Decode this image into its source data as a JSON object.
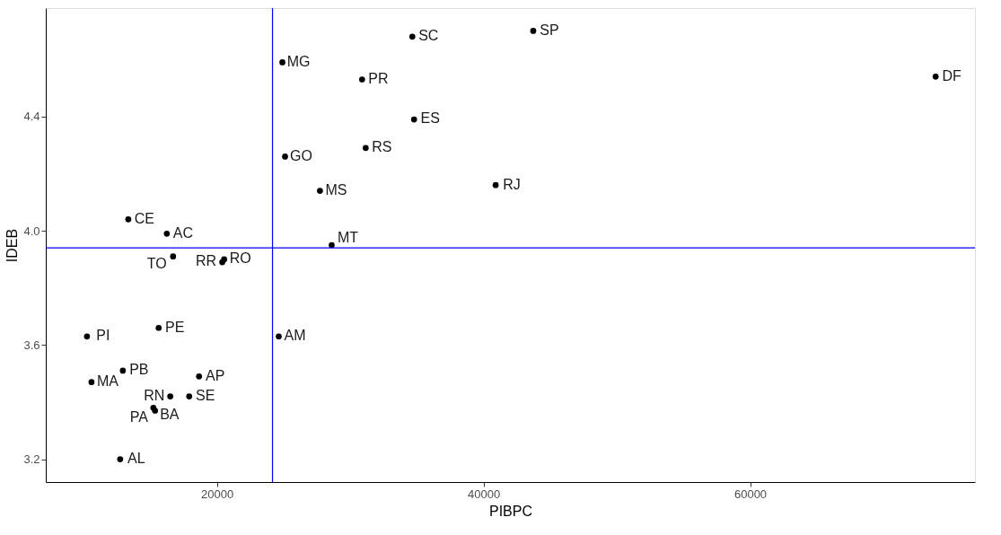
{
  "chart_data": {
    "type": "scatter",
    "xlabel": "PIBPC",
    "ylabel": "IDEB",
    "xlim": [
      7160,
      76870
    ],
    "ylim": [
      3.12,
      4.78
    ],
    "xticks": [
      20000,
      40000,
      60000
    ],
    "yticks": [
      {
        "value": 3.2,
        "label": "3.2"
      },
      {
        "value": 3.6,
        "label": "3.6"
      },
      {
        "value": 4.0,
        "label": "4.0"
      },
      {
        "value": 4.4,
        "label": "4.4"
      }
    ],
    "grid": false,
    "marker": "circle",
    "series": [
      {
        "color": "#000000",
        "x": [
          34660,
          43730,
          73920,
          24910,
          30890,
          34790,
          25110,
          31160,
          40910,
          27730,
          13350,
          16240,
          20540,
          20400,
          16710,
          28610,
          15630,
          24640,
          10250,
          12940,
          18660,
          10590,
          16500,
          17920,
          15230,
          15360,
          12740
        ],
        "values": [
          4.68,
          4.7,
          4.54,
          4.59,
          4.53,
          4.39,
          4.26,
          4.29,
          4.16,
          4.14,
          4.04,
          3.99,
          3.9,
          3.89,
          3.91,
          3.95,
          3.66,
          3.63,
          3.63,
          3.51,
          3.49,
          3.47,
          3.42,
          3.42,
          3.38,
          3.37,
          3.2
        ]
      }
    ],
    "ref_lines": [
      {
        "axis": "x",
        "value": 24170,
        "color": "#0000ff"
      },
      {
        "axis": "y",
        "value": 3.94,
        "color": "#0000ff"
      }
    ],
    "annotations": [
      {
        "text": "SC",
        "x": 34660,
        "y": 4.68
      },
      {
        "text": "SP",
        "x": 43730,
        "y": 4.7
      },
      {
        "text": "DF",
        "x": 73920,
        "y": 4.54
      },
      {
        "text": "MG",
        "x": 24910,
        "y": 4.59
      },
      {
        "text": "PR",
        "x": 30890,
        "y": 4.53
      },
      {
        "text": "ES",
        "x": 34790,
        "y": 4.39
      },
      {
        "text": "GO",
        "x": 25110,
        "y": 4.26
      },
      {
        "text": "RS",
        "x": 31160,
        "y": 4.29
      },
      {
        "text": "RJ",
        "x": 40910,
        "y": 4.16
      },
      {
        "text": "MS",
        "x": 27730,
        "y": 4.14
      },
      {
        "text": "CE",
        "x": 13350,
        "y": 4.04
      },
      {
        "text": "AC",
        "x": 16240,
        "y": 3.99
      },
      {
        "text": "RO",
        "x": 20540,
        "y": 3.9
      },
      {
        "text": "RR",
        "x": 20400,
        "y": 3.89
      },
      {
        "text": "TO",
        "x": 16710,
        "y": 3.91
      },
      {
        "text": "MT",
        "x": 28610,
        "y": 3.95
      },
      {
        "text": "PE",
        "x": 15630,
        "y": 3.66
      },
      {
        "text": "AM",
        "x": 24640,
        "y": 3.63
      },
      {
        "text": "PI",
        "x": 10250,
        "y": 3.63
      },
      {
        "text": "PB",
        "x": 12940,
        "y": 3.51
      },
      {
        "text": "AP",
        "x": 18660,
        "y": 3.49
      },
      {
        "text": "MA",
        "x": 10590,
        "y": 3.47
      },
      {
        "text": "RN",
        "x": 16500,
        "y": 3.42
      },
      {
        "text": "SE",
        "x": 17920,
        "y": 3.42
      },
      {
        "text": "BA",
        "x": 15230,
        "y": 3.38
      },
      {
        "text": "PA",
        "x": 15360,
        "y": 3.37
      },
      {
        "text": "AL",
        "x": 12740,
        "y": 3.2
      }
    ]
  }
}
